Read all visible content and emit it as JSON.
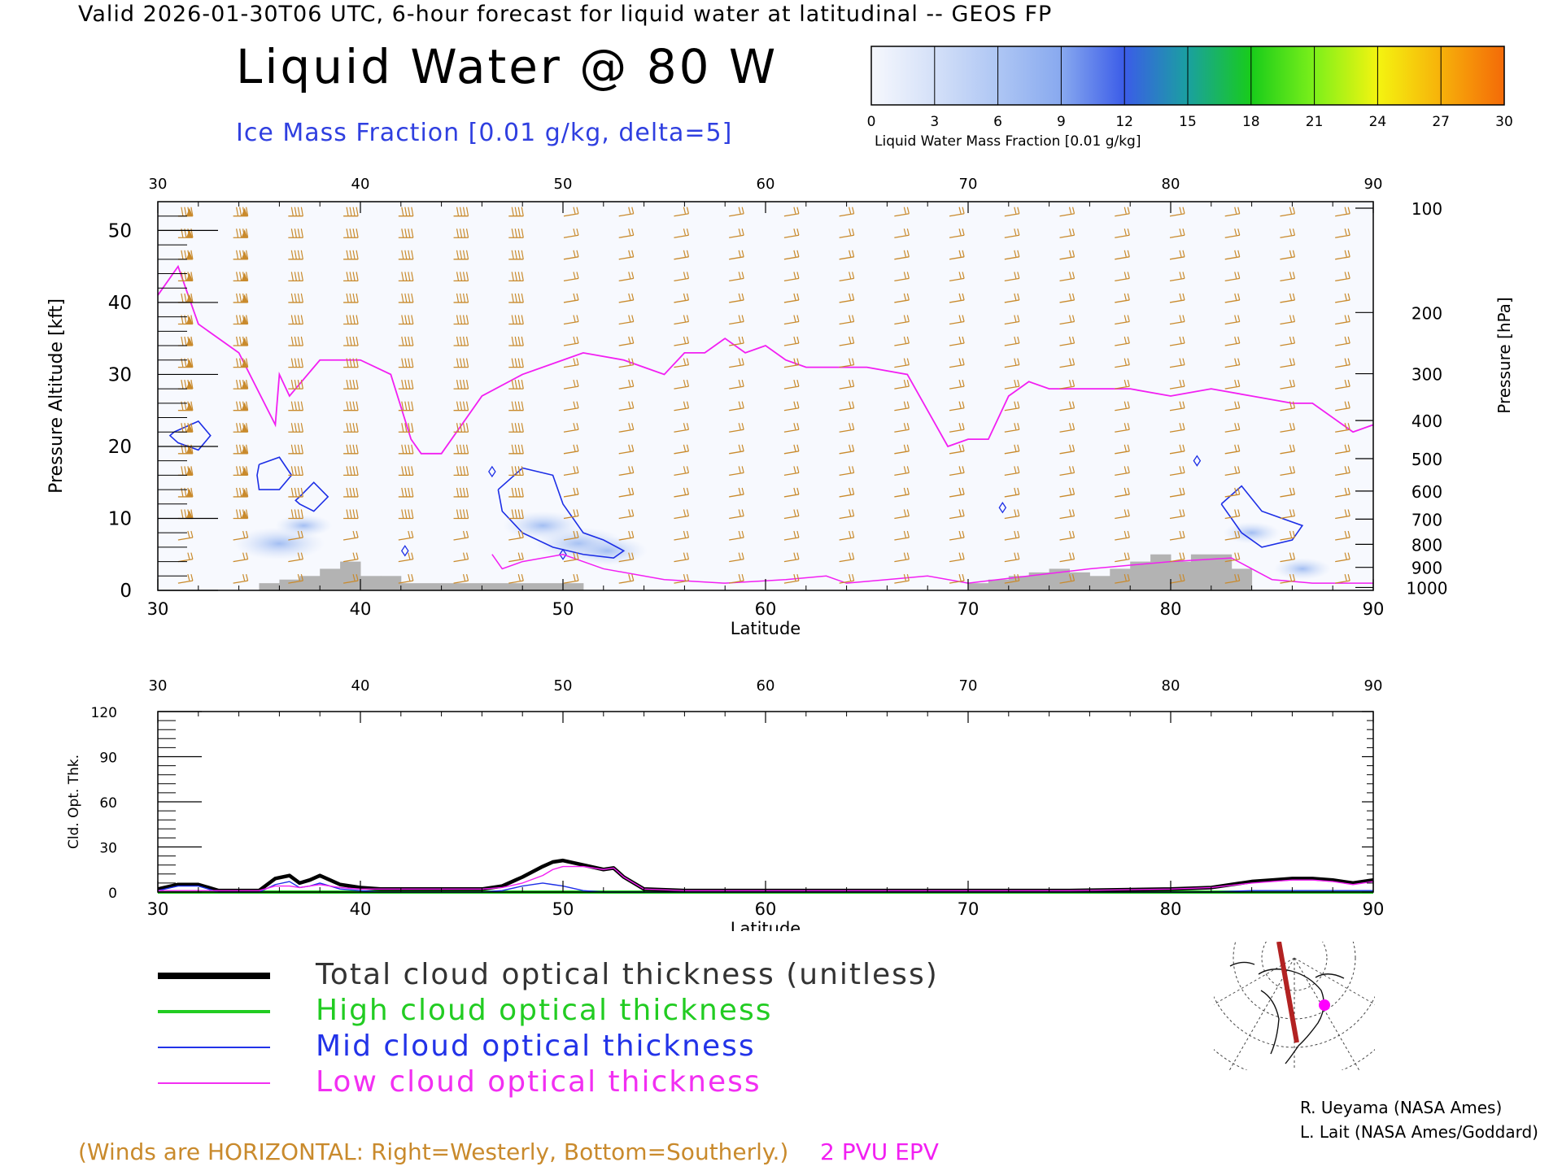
{
  "header_line": "Valid 2026-01-30T06 UTC, 6-hour forecast for liquid water at latitudinal -- GEOS FP",
  "main_title": "Liquid Water @ 80 W",
  "sub_title": "Ice Mass Fraction [0.01 g/kg, delta=5]",
  "colorbar": {
    "label": "Liquid Water Mass Fraction [0.01 g/kg]",
    "ticks": [
      "0",
      "3",
      "6",
      "9",
      "12",
      "15",
      "18",
      "21",
      "24",
      "27",
      "30"
    ],
    "colors": [
      "#f6f8fd",
      "#d4e0f8",
      "#aec6f4",
      "#88a9ef",
      "#3b5ce8",
      "#1aa0a0",
      "#18cc1a",
      "#7df01a",
      "#f4f410",
      "#f7b10a",
      "#f46a08"
    ]
  },
  "chart_data": [
    {
      "type": "heatmap",
      "title": "Liquid Water @ 80 W",
      "xlabel": "Latitude",
      "ylabel": "Pressure Altitude [kft]",
      "y2label": "Pressure [hPa]",
      "xlim": [
        30,
        90
      ],
      "ylim": [
        0,
        54
      ],
      "x_ticks": [
        "30",
        "40",
        "50",
        "60",
        "70",
        "80",
        "90"
      ],
      "y_ticks": [
        "0",
        "10",
        "20",
        "30",
        "40",
        "50"
      ],
      "y2_ticks": [
        {
          "label": "100",
          "kft": 53.1
        },
        {
          "label": "200",
          "kft": 38.6
        },
        {
          "label": "300",
          "kft": 30.1
        },
        {
          "label": "400",
          "kft": 23.6
        },
        {
          "label": "500",
          "kft": 18.3
        },
        {
          "label": "600",
          "kft": 13.8
        },
        {
          "label": "700",
          "kft": 9.9
        },
        {
          "label": "800",
          "kft": 6.4
        },
        {
          "label": "900",
          "kft": 3.2
        },
        {
          "label": "1000",
          "kft": 0.4
        }
      ],
      "epv_2pvu": {
        "lat": [
          30,
          31,
          32,
          34,
          35.8,
          36,
          36.5,
          38,
          40,
          41.5,
          42.5,
          43,
          44,
          46,
          48,
          50,
          51,
          53,
          54,
          55,
          56,
          57,
          58,
          59,
          60,
          61,
          62,
          63,
          65,
          67,
          69,
          70,
          71,
          72,
          73,
          74,
          76,
          78,
          80,
          82,
          84,
          86,
          87,
          88,
          89,
          90
        ],
        "kft": [
          41,
          45,
          37,
          33,
          23,
          30,
          27,
          32,
          32,
          30,
          21,
          19,
          19,
          27,
          30,
          32,
          33,
          32,
          31,
          30,
          33,
          33,
          35,
          33,
          34,
          32,
          31,
          31,
          31,
          30,
          20,
          21,
          21,
          27,
          29,
          28,
          28,
          28,
          27,
          28,
          27,
          26,
          26,
          24,
          22,
          23
        ]
      },
      "ice_contours": [
        {
          "lat": [
            30.8,
            32.0,
            32.6,
            32.0,
            31.0,
            30.6,
            30.8
          ],
          "kft": [
            22,
            23.5,
            21.5,
            19.5,
            20.5,
            21.5,
            22
          ]
        },
        {
          "lat": [
            35.0,
            36.0,
            36.6,
            36.0,
            35.0,
            34.9,
            35.0
          ],
          "kft": [
            17.5,
            18.5,
            16.0,
            14.0,
            14.0,
            16.0,
            17.5
          ]
        },
        {
          "lat": [
            37.0,
            37.7,
            38.4,
            37.7,
            37.0,
            36.8,
            37.0
          ],
          "kft": [
            13.0,
            15.0,
            13.0,
            11.0,
            12.0,
            12.5,
            13.0
          ]
        },
        {
          "lat": [
            46.8,
            48.0,
            49.5,
            50.0,
            51.0,
            52.0,
            53.0,
            52.5,
            51.0,
            49.5,
            48.0,
            47.0,
            46.8
          ],
          "kft": [
            14.0,
            17.0,
            16.0,
            12.0,
            8.0,
            7.0,
            5.5,
            4.5,
            5.0,
            6.0,
            8.0,
            11.0,
            14.0
          ]
        },
        {
          "lat": [
            82.5,
            83.5,
            84.5,
            85.5,
            86.5,
            86.0,
            84.5,
            83.5,
            82.5
          ],
          "kft": [
            12.0,
            14.5,
            11.0,
            10.0,
            9.0,
            7.0,
            6.0,
            8.0,
            12.0
          ]
        }
      ],
      "liquid_water_blobs": [
        {
          "lat": 36.0,
          "kft": 6.5,
          "value": 6
        },
        {
          "lat": 37.2,
          "kft": 9.0,
          "value": 3
        },
        {
          "lat": 49.0,
          "kft": 9.0,
          "value": 5
        },
        {
          "lat": 50.8,
          "kft": 6.5,
          "value": 6
        },
        {
          "lat": 52.2,
          "kft": 5.5,
          "value": 5
        },
        {
          "lat": 84.0,
          "kft": 8.0,
          "value": 3
        },
        {
          "lat": 86.5,
          "kft": 3.0,
          "value": 3
        }
      ],
      "terrain": {
        "lat": [
          35,
          36,
          37,
          38,
          39,
          40,
          41,
          42,
          44,
          46,
          48,
          50,
          51,
          70,
          71,
          72,
          73,
          74,
          75,
          76,
          77,
          78,
          79,
          80,
          81,
          82,
          83
        ],
        "kft": [
          1,
          1.5,
          2,
          3,
          4,
          2,
          2,
          1,
          1,
          1,
          1,
          1,
          0,
          1,
          1.5,
          2,
          2.5,
          3,
          2.5,
          2,
          3,
          4,
          5,
          4,
          5,
          5,
          3
        ]
      },
      "winds_note": "(Winds are HORIZONTAL: Right=Westerly, Bottom=Southerly.)",
      "epv_label": "2 PVU EPV"
    },
    {
      "type": "line",
      "xlabel": "Latitude",
      "ylabel": "Cld. Opt. Thk.",
      "xlim": [
        30,
        90
      ],
      "ylim": [
        0,
        120
      ],
      "x_ticks": [
        "30",
        "40",
        "50",
        "60",
        "70",
        "80",
        "90"
      ],
      "y_ticks": [
        "0",
        "30",
        "60",
        "90",
        "120"
      ],
      "x": [
        30,
        31,
        32,
        33,
        34,
        35,
        35.8,
        36.5,
        37,
        37.5,
        38,
        38.5,
        39,
        40,
        41,
        42,
        44,
        46,
        47,
        48,
        49,
        49.5,
        50,
        51,
        52,
        52.5,
        53,
        54,
        56,
        60,
        65,
        70,
        75,
        80,
        82,
        84,
        85,
        86,
        87,
        88,
        89,
        90
      ],
      "series": [
        {
          "name": "Total cloud optical thickness (unitless)",
          "color": "#000000",
          "values": [
            2,
            5,
            5,
            1,
            1,
            1,
            9,
            11,
            6,
            8,
            11,
            8,
            5,
            3,
            2,
            2,
            2,
            2,
            4,
            10,
            17,
            20,
            21,
            18,
            15,
            16,
            10,
            2,
            1,
            1,
            1,
            1,
            1,
            2,
            3,
            7,
            8,
            9,
            9,
            8,
            6,
            8
          ]
        },
        {
          "name": "High cloud optical thickness",
          "color": "#1ecc1e",
          "values": [
            0,
            0,
            0,
            0,
            0,
            0,
            0,
            0,
            0,
            0,
            0,
            0,
            0,
            0,
            0,
            0,
            0,
            0,
            0,
            0,
            0,
            0,
            0,
            0,
            0,
            0,
            0,
            0,
            0,
            0,
            0,
            0,
            0,
            0,
            0,
            0,
            0,
            0,
            0,
            0,
            0,
            0
          ]
        },
        {
          "name": "Mid cloud optical thickness",
          "color": "#1c2ee6",
          "values": [
            1,
            4,
            4,
            0,
            0,
            0,
            5,
            7,
            3,
            4,
            6,
            4,
            2,
            1,
            0,
            0,
            0,
            0,
            1,
            4,
            6,
            5,
            4,
            1,
            0,
            0,
            0,
            0,
            0,
            0,
            0,
            0,
            0,
            0,
            0,
            1,
            1,
            1,
            1,
            1,
            1,
            1
          ]
        },
        {
          "name": "Low cloud optical thickness",
          "color": "#f21ff2",
          "values": [
            1,
            1,
            1,
            1,
            1,
            1,
            4,
            4,
            3,
            4,
            5,
            4,
            3,
            2,
            2,
            2,
            2,
            2,
            3,
            6,
            11,
            15,
            17,
            17,
            15,
            16,
            10,
            2,
            1,
            1,
            1,
            1,
            1,
            2,
            3,
            6,
            7,
            8,
            8,
            7,
            5,
            7
          ]
        }
      ]
    }
  ],
  "legend": {
    "items": [
      {
        "label": "Total cloud optical thickness (unitless)",
        "color": "#000000"
      },
      {
        "label": "High cloud optical thickness",
        "color": "#22cc22"
      },
      {
        "label": "Mid cloud optical thickness",
        "color": "#2233e8"
      },
      {
        "label": "Low cloud optical thickness",
        "color": "#f22ff2"
      }
    ]
  },
  "map_inset": {
    "icon": "globe-map-icon",
    "track_color": "#b22222",
    "marker_color": "#ff00ff"
  },
  "credits": [
    "R. Ueyama (NASA Ames)",
    "L. Lait (NASA Ames/Goddard)"
  ],
  "colors": {
    "wind_barb": "#c98a2c",
    "epv": "#f21ff2",
    "ice_contour": "#1c2ee6",
    "terrain": "#b3b3b3"
  }
}
